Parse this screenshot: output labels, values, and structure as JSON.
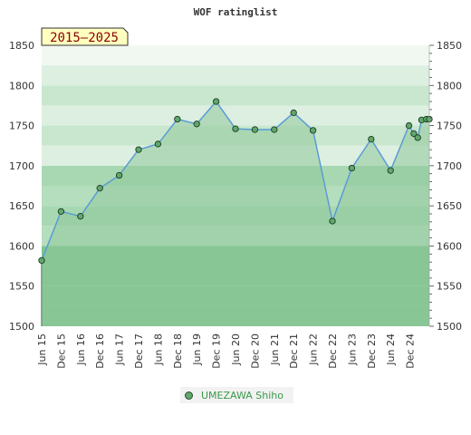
{
  "chart_data": {
    "type": "area",
    "title": "WOF ratinglist",
    "badge": "2015–2025",
    "xlabel": "",
    "ylabel": "",
    "ylim": [
      1500,
      1850
    ],
    "yticks": [
      1500,
      1550,
      1600,
      1650,
      1700,
      1750,
      1800,
      1850
    ],
    "x_tick_labels": [
      "Jun 15",
      "Dec 15",
      "Jun 16",
      "Dec 16",
      "Jun 17",
      "Dec 17",
      "Jun 18",
      "Dec 18",
      "Jun 19",
      "Dec 19",
      "Jun 20",
      "Dec 20",
      "Jun 21",
      "Dec 21",
      "Jun 22",
      "Dec 22",
      "Jun 23",
      "Dec 23",
      "Jun 24",
      "Dec 24"
    ],
    "legend_placement": "bottom-center",
    "colors": {
      "line": "#5b9bd5",
      "area": "#8fc99a",
      "band_dark": "#7fc491",
      "band_light": "#b5debe",
      "band_pale": "#dcefe0",
      "band_white": "#f1f8f2",
      "point": "#5fa86a"
    },
    "series": [
      {
        "name": "UMEZAWA Shiho",
        "x": [
          0,
          1,
          2,
          3,
          4,
          5,
          6,
          7,
          8,
          9,
          10,
          11,
          12,
          13,
          14,
          15,
          16,
          17,
          18,
          18.95,
          19.2,
          19.4,
          19.6,
          19.85,
          20.0
        ],
        "values": [
          1582,
          1643,
          1637,
          1672,
          1688,
          1720,
          1727,
          1758,
          1752,
          1780,
          1746,
          1745,
          1745,
          1766,
          1744,
          1631,
          1697,
          1733,
          1694,
          1750,
          1740,
          1735,
          1757,
          1758,
          1758
        ]
      }
    ]
  }
}
